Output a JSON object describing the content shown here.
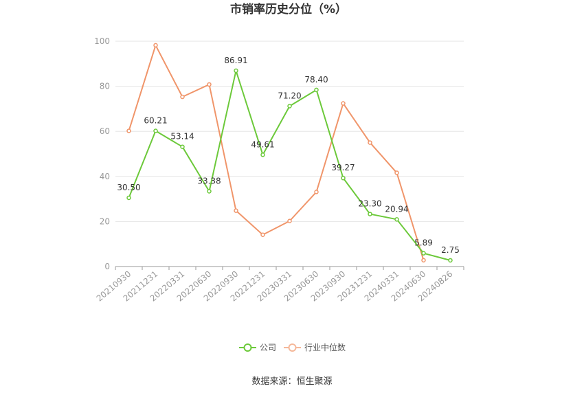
{
  "chart_data": {
    "type": "line",
    "title": "市销率历史分位（%）",
    "categories": [
      "20210930",
      "20211231",
      "20220331",
      "20220630",
      "20220930",
      "20221231",
      "20230331",
      "20230630",
      "20230930",
      "20231231",
      "20240331",
      "20240630",
      "20240826"
    ],
    "series": [
      {
        "name": "公司",
        "color": "#6cc93a",
        "values": [
          30.5,
          60.21,
          53.14,
          33.38,
          86.91,
          49.61,
          71.2,
          78.4,
          39.27,
          23.3,
          20.94,
          5.89,
          2.75
        ],
        "labels": [
          "30.50",
          "60.21",
          "53.14",
          "33.38",
          "86.91",
          "49.61",
          "71.20",
          "78.40",
          "39.27",
          "23.30",
          "20.94",
          "5.89",
          "2.75"
        ]
      },
      {
        "name": "行业中位数",
        "color": "#f0956a",
        "values": [
          60.2,
          98.2,
          75.3,
          80.8,
          24.8,
          14.1,
          20.2,
          33.1,
          72.4,
          55.0,
          41.6,
          2.8,
          null
        ]
      }
    ],
    "yticks": [
      "0",
      "20",
      "40",
      "60",
      "80",
      "100"
    ],
    "ylim": [
      0,
      100
    ],
    "grid": true,
    "legend": "bottom-center"
  },
  "source": "数据来源：恒生聚源"
}
